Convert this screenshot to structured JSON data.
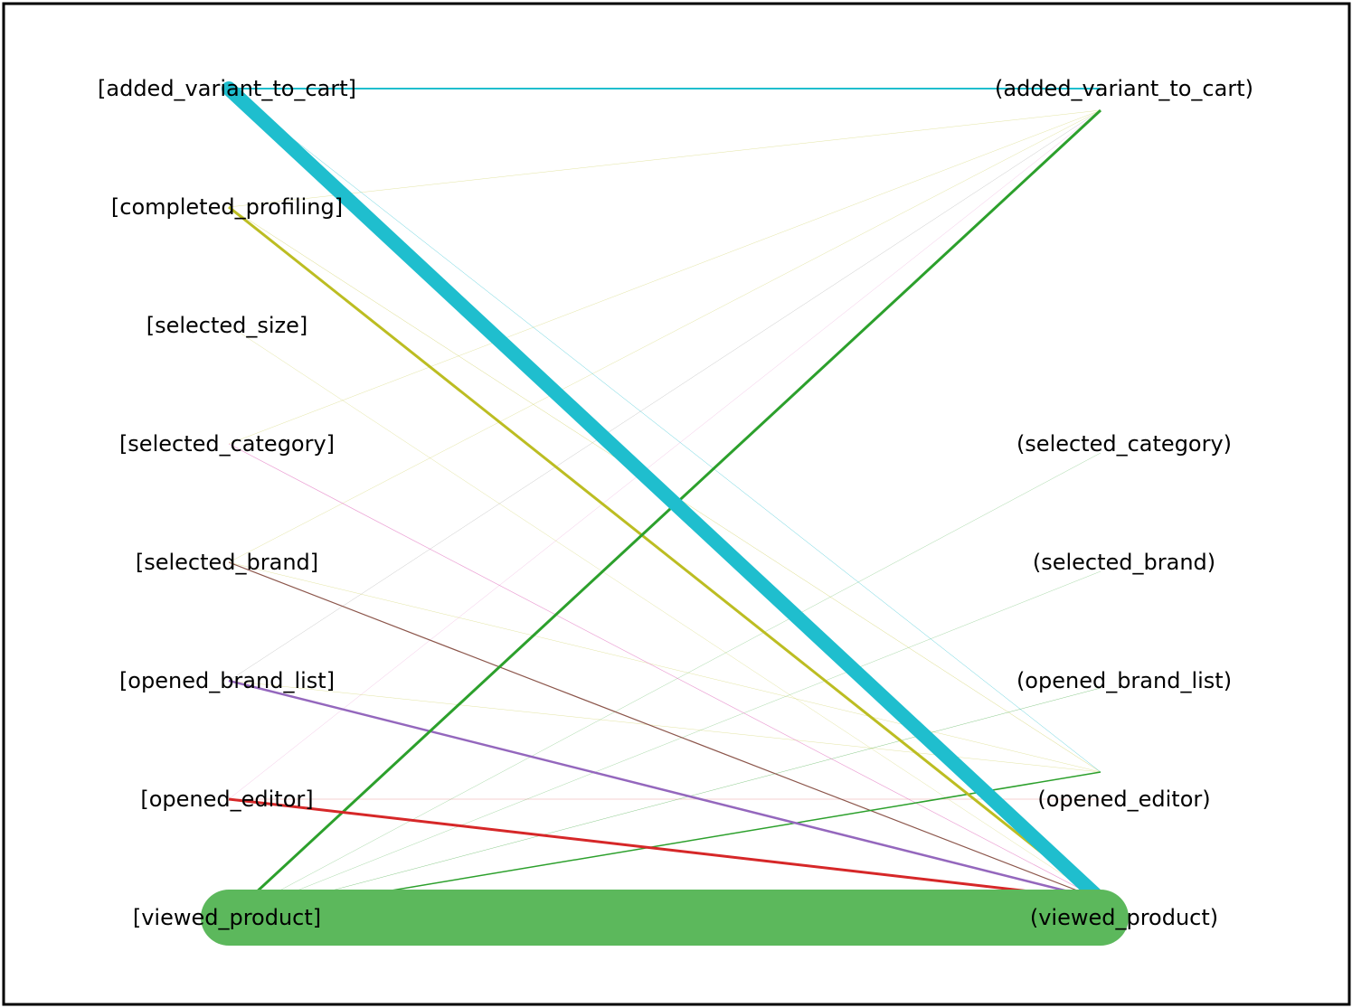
{
  "diagram": {
    "type": "bipartite-transition-graph",
    "source_nodes": [
      {
        "id": "s_added_variant_to_cart",
        "label": "[added_variant_to_cart]"
      },
      {
        "id": "s_completed_profiling",
        "label": "[completed_profiling]"
      },
      {
        "id": "s_selected_size",
        "label": "[selected_size]"
      },
      {
        "id": "s_selected_category",
        "label": "[selected_category]"
      },
      {
        "id": "s_selected_brand",
        "label": "[selected_brand]"
      },
      {
        "id": "s_opened_brand_list",
        "label": "[opened_brand_list]"
      },
      {
        "id": "s_opened_editor",
        "label": "[opened_editor]"
      },
      {
        "id": "s_viewed_product",
        "label": "[viewed_product]"
      }
    ],
    "target_nodes": [
      {
        "id": "t_added_variant_to_cart",
        "label": "(added_variant_to_cart)"
      },
      {
        "id": "t_selected_category",
        "label": "(selected_category)"
      },
      {
        "id": "t_selected_brand",
        "label": "(selected_brand)"
      },
      {
        "id": "t_opened_brand_list",
        "label": "(opened_brand_list)"
      },
      {
        "id": "t_opened_editor",
        "label": "(opened_editor)"
      },
      {
        "id": "t_viewed_product",
        "label": "(viewed_product)"
      }
    ],
    "edges": [
      {
        "from": "s_viewed_product",
        "to": "t_viewed_product",
        "color": "#5cb85c",
        "weight": 62
      },
      {
        "from": "s_added_variant_to_cart",
        "to": "t_viewed_product",
        "color": "#1fbece",
        "weight": 16
      },
      {
        "from": "s_added_variant_to_cart",
        "to": "t_added_variant_to_cart",
        "color": "#1fbece",
        "weight": 2
      },
      {
        "from": "s_added_variant_to_cart",
        "to": "t_opened_editor",
        "color": "#1fbece",
        "weight": 0.5
      },
      {
        "from": "s_completed_profiling",
        "to": "t_viewed_product",
        "color": "#bcbd22",
        "weight": 3
      },
      {
        "from": "s_completed_profiling",
        "to": "t_opened_editor",
        "color": "#bcbd22",
        "weight": 0.4
      },
      {
        "from": "s_completed_profiling",
        "to": "t_added_variant_to_cart",
        "color": "#bcbd22",
        "weight": 0.3
      },
      {
        "from": "s_viewed_product",
        "to": "t_added_variant_to_cart",
        "color": "#2ca02c",
        "weight": 3
      },
      {
        "from": "s_viewed_product",
        "to": "t_opened_editor",
        "color": "#2ca02c",
        "weight": 1.5
      },
      {
        "from": "s_viewed_product",
        "to": "t_opened_brand_list",
        "color": "#2ca02c",
        "weight": 0.4
      },
      {
        "from": "s_viewed_product",
        "to": "t_selected_brand",
        "color": "#2ca02c",
        "weight": 0.3
      },
      {
        "from": "s_viewed_product",
        "to": "t_selected_category",
        "color": "#2ca02c",
        "weight": 0.3
      },
      {
        "from": "s_opened_editor",
        "to": "t_viewed_product",
        "color": "#d62728",
        "weight": 3
      },
      {
        "from": "s_opened_editor",
        "to": "t_opened_editor",
        "color": "#d62728",
        "weight": 0.3
      },
      {
        "from": "s_opened_editor",
        "to": "t_added_variant_to_cart",
        "color": "#e377c2",
        "weight": 0.3
      },
      {
        "from": "s_opened_brand_list",
        "to": "t_viewed_product",
        "color": "#9467bd",
        "weight": 2.5
      },
      {
        "from": "s_opened_brand_list",
        "to": "t_opened_editor",
        "color": "#bcbd22",
        "weight": 0.3
      },
      {
        "from": "s_opened_brand_list",
        "to": "t_added_variant_to_cart",
        "color": "#7f7f7f",
        "weight": 0.3
      },
      {
        "from": "s_selected_brand",
        "to": "t_viewed_product",
        "color": "#8c564b",
        "weight": 1.2
      },
      {
        "from": "s_selected_brand",
        "to": "t_opened_editor",
        "color": "#bcbd22",
        "weight": 0.3
      },
      {
        "from": "s_selected_brand",
        "to": "t_added_variant_to_cart",
        "color": "#bcbd22",
        "weight": 0.3
      },
      {
        "from": "s_selected_category",
        "to": "t_viewed_product",
        "color": "#e377c2",
        "weight": 0.7
      },
      {
        "from": "s_selected_category",
        "to": "t_added_variant_to_cart",
        "color": "#bcbd22",
        "weight": 0.3
      },
      {
        "from": "s_selected_size",
        "to": "t_viewed_product",
        "color": "#bcbd22",
        "weight": 0.3
      }
    ]
  }
}
